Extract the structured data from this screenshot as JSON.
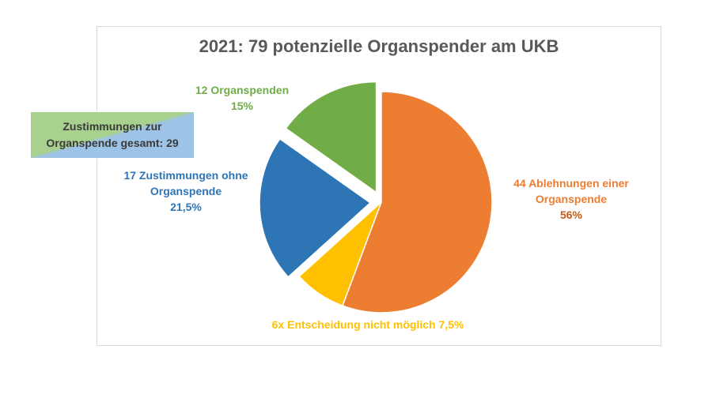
{
  "chart_data": {
    "type": "pie",
    "title": "2021: 79 potenzielle Organspender am UKB",
    "slices": [
      {
        "value": 44,
        "percent": 56,
        "color": "#ed7d31",
        "label_lines": [
          "44 Ablehnungen einer",
          "Organspende"
        ],
        "percent_text": "56%"
      },
      {
        "value": 6,
        "percent": 7.5,
        "color": "#ffc000",
        "label_lines": [
          "6x Entscheidung nicht möglich 7,5%"
        ],
        "percent_text": ""
      },
      {
        "value": 17,
        "percent": 21.5,
        "color": "#2e75b6",
        "label_lines": [
          "17 Zustimmungen ohne",
          "Organspende"
        ],
        "percent_text": "21,5%",
        "exploded": true
      },
      {
        "value": 12,
        "percent": 15,
        "color": "#70ad47",
        "label_lines": [
          "12 Organspenden"
        ],
        "percent_text": "15%",
        "exploded": true
      }
    ],
    "callout": {
      "lines": [
        "Zustimmungen zur",
        "Organspende gesamt: 29"
      ],
      "colors": [
        "#a9d18e",
        "#9dc3e6"
      ]
    }
  }
}
